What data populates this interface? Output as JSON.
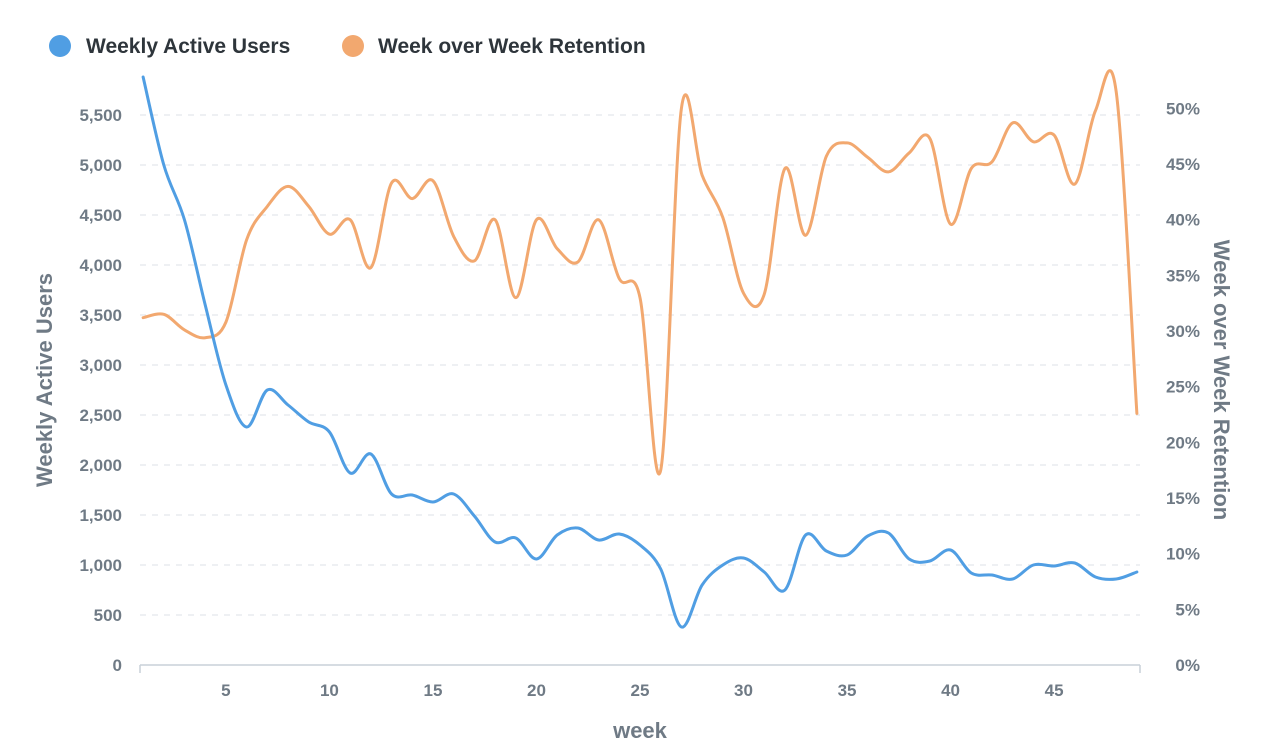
{
  "chart_data": {
    "type": "line",
    "legend_position": "top-left",
    "grid": true,
    "x": {
      "label": "week",
      "range": [
        1,
        49
      ],
      "ticks": [
        5,
        10,
        15,
        20,
        25,
        30,
        35,
        40,
        45
      ],
      "tick_labels": [
        "5",
        "10",
        "15",
        "20",
        "25",
        "30",
        "35",
        "40",
        "45"
      ]
    },
    "y_left": {
      "label": "Weekly Active Users",
      "range": [
        0,
        5900
      ],
      "ticks": [
        0,
        500,
        1000,
        1500,
        2000,
        2500,
        3000,
        3500,
        4000,
        4500,
        5000,
        5500
      ],
      "tick_labels": [
        "0",
        "500",
        "1,000",
        "1,500",
        "2,000",
        "2,500",
        "3,000",
        "3,500",
        "4,000",
        "4,500",
        "5,000",
        "5,500"
      ]
    },
    "y_right": {
      "label": "Week over Week Retention",
      "range": [
        0,
        53
      ],
      "ticks": [
        0,
        5,
        10,
        15,
        20,
        25,
        30,
        35,
        40,
        45,
        50
      ],
      "tick_labels": [
        "0%",
        "5%",
        "10%",
        "15%",
        "20%",
        "25%",
        "30%",
        "35%",
        "40%",
        "45%",
        "50%"
      ]
    },
    "series": [
      {
        "name": "Weekly Active Users",
        "axis": "left",
        "color": "#509ee3",
        "x": [
          1,
          2,
          3,
          4,
          5,
          6,
          7,
          8,
          9,
          10,
          11,
          12,
          13,
          14,
          15,
          16,
          17,
          18,
          19,
          20,
          21,
          22,
          23,
          24,
          25,
          26,
          27,
          28,
          29,
          30,
          31,
          32,
          33,
          34,
          35,
          36,
          37,
          38,
          39,
          40,
          41,
          42,
          43,
          44,
          45,
          46,
          47,
          48,
          49
        ],
        "values": [
          5880,
          5000,
          4450,
          3600,
          2800,
          2380,
          2750,
          2600,
          2430,
          2330,
          1920,
          2110,
          1710,
          1700,
          1630,
          1710,
          1490,
          1230,
          1270,
          1060,
          1300,
          1370,
          1250,
          1310,
          1200,
          960,
          380,
          800,
          1000,
          1070,
          930,
          750,
          1300,
          1140,
          1100,
          1290,
          1320,
          1060,
          1040,
          1150,
          920,
          900,
          860,
          1000,
          990,
          1020,
          880,
          860,
          930
        ]
      },
      {
        "name": "Week over Week Retention",
        "axis": "right",
        "color": "#f2a86f",
        "x": [
          1,
          2,
          3,
          4,
          5,
          6,
          7,
          8,
          9,
          10,
          11,
          12,
          13,
          14,
          15,
          16,
          17,
          18,
          19,
          20,
          21,
          22,
          23,
          24,
          25,
          26,
          27,
          28,
          29,
          30,
          31,
          32,
          33,
          34,
          35,
          36,
          37,
          38,
          39,
          40,
          41,
          42,
          43,
          44,
          45,
          46,
          47,
          48,
          49
        ],
        "values": [
          31.2,
          31.5,
          30.1,
          29.4,
          30.8,
          38.2,
          41.2,
          43.0,
          41.2,
          38.7,
          40.0,
          35.7,
          43.3,
          41.9,
          43.5,
          38.5,
          36.3,
          40.0,
          33.0,
          40.0,
          37.4,
          36.2,
          40.0,
          34.7,
          33.0,
          17.5,
          50.0,
          44.0,
          40.2,
          33.4,
          33.3,
          44.6,
          38.6,
          45.7,
          46.9,
          45.6,
          44.3,
          46.0,
          47.3,
          39.6,
          44.6,
          45.2,
          48.7,
          47.0,
          47.6,
          43.2,
          49.8,
          51.5,
          22.6
        ]
      }
    ]
  },
  "legend": [
    {
      "label": "Weekly Active Users",
      "color": "#509ee3"
    },
    {
      "label": "Week over Week Retention",
      "color": "#f2a86f"
    }
  ]
}
